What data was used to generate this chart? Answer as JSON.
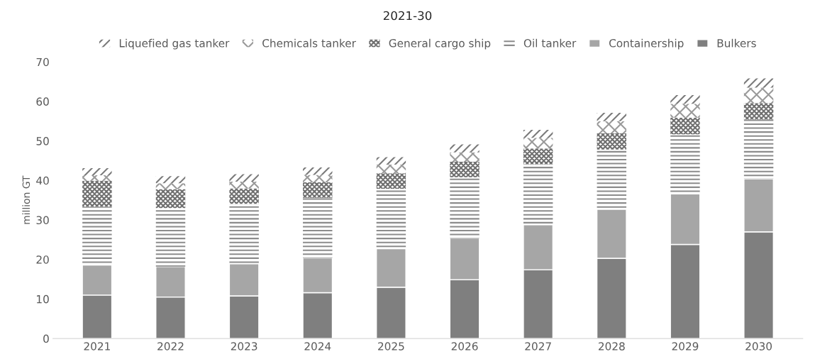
{
  "chart_data": {
    "type": "bar",
    "title": "2021-30",
    "ylabel": "million GT",
    "stacked": true,
    "categories": [
      "2021",
      "2022",
      "2023",
      "2024",
      "2025",
      "2026",
      "2027",
      "2028",
      "2029",
      "2030"
    ],
    "series": [
      {
        "name": "Bulkers",
        "color": "#7f7f7f",
        "values": [
          11.0,
          10.5,
          10.8,
          11.6,
          13.0,
          14.9,
          17.4,
          20.3,
          23.8,
          27.0
        ]
      },
      {
        "name": "Containership",
        "color": "#a6a6a6",
        "values": [
          7.6,
          7.7,
          8.1,
          8.8,
          9.7,
          10.5,
          11.4,
          12.4,
          12.8,
          13.4
        ]
      },
      {
        "name": "Oil tanker",
        "color": "#8c8c8c",
        "values": [
          14.7,
          14.8,
          15.2,
          15.2,
          15.2,
          15.4,
          15.3,
          15.1,
          15.1,
          15.0
        ]
      },
      {
        "name": "General cargo ship",
        "color": "#6f6f6f",
        "values": [
          6.6,
          4.8,
          3.9,
          3.9,
          3.9,
          3.9,
          4.0,
          4.1,
          4.2,
          4.2
        ]
      },
      {
        "name": "Chemicals tanker",
        "color": "#9a9a9a",
        "values": [
          1.4,
          1.5,
          1.7,
          1.9,
          2.2,
          2.4,
          2.7,
          3.1,
          3.5,
          3.9
        ]
      },
      {
        "name": "Liquefied gas tanker",
        "color": "#7a7a7a",
        "values": [
          1.8,
          1.8,
          1.9,
          1.9,
          1.9,
          2.0,
          2.0,
          2.1,
          2.2,
          2.3
        ]
      }
    ],
    "ylim": [
      0,
      70
    ],
    "yticks": [
      0,
      10,
      20,
      30,
      40,
      50,
      60,
      70
    ],
    "grid": false,
    "legend": "top"
  }
}
